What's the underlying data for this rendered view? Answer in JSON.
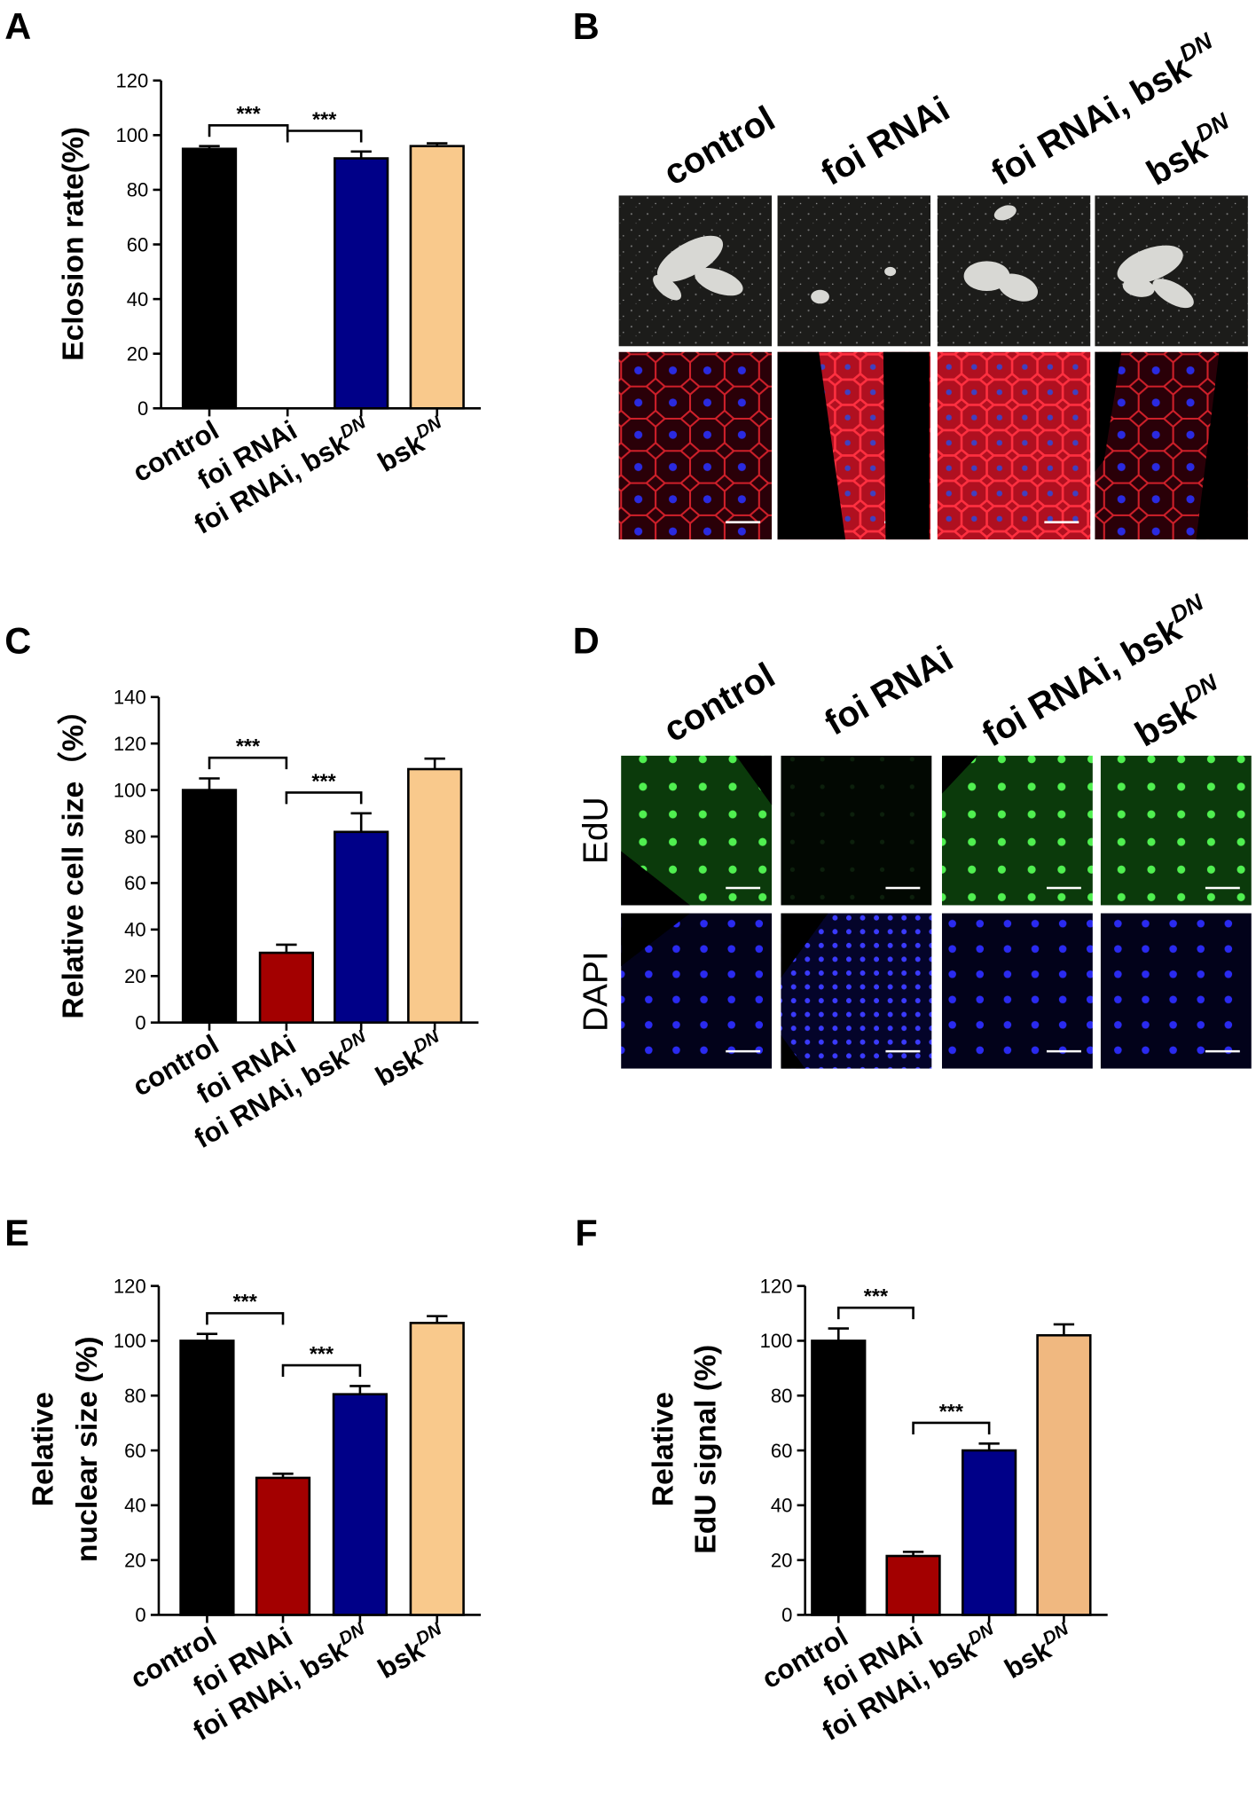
{
  "chart_data": [
    {
      "type": "bar",
      "panel_label": "A",
      "y_label": "Eclosion rate(%)",
      "categories": [
        "control",
        "foi RNAi",
        "foi RNAi, bsk",
        "bsk"
      ],
      "category_superscripts": [
        null,
        null,
        "DN",
        "DN"
      ],
      "values": [
        95,
        0,
        91.5,
        96
      ],
      "errors": [
        1,
        0,
        2.5,
        1
      ],
      "colors": [
        "#000000",
        "#ffffff",
        "#000088",
        "#f9c98c"
      ],
      "ylim": [
        0,
        120
      ],
      "yticks": [
        0,
        20,
        40,
        60,
        80,
        100,
        120
      ],
      "annotations": [
        {
          "text": "***",
          "categories": [
            0,
            1
          ]
        },
        {
          "text": "***",
          "categories": [
            1,
            2
          ]
        }
      ]
    },
    {
      "type": "bar",
      "panel_label": "C",
      "y_label": "Relative cell size（%）",
      "categories": [
        "control",
        "foi RNAi",
        "foi RNAi,  bsk",
        "bsk"
      ],
      "category_superscripts": [
        null,
        null,
        "DN",
        "DN"
      ],
      "values": [
        100,
        30,
        82,
        109
      ],
      "errors": [
        5,
        3.5,
        8,
        4.5
      ],
      "colors": [
        "#000000",
        "#a30000",
        "#000088",
        "#f9c98c"
      ],
      "ylim": [
        0,
        140
      ],
      "yticks": [
        0,
        20,
        40,
        60,
        80,
        100,
        120,
        140
      ],
      "annotations": [
        {
          "text": "***",
          "categories": [
            0,
            1
          ]
        },
        {
          "text": "***",
          "categories": [
            1,
            2
          ]
        }
      ]
    },
    {
      "type": "bar",
      "panel_label": "E",
      "y_label": [
        "Relative",
        "nuclear size (%)"
      ],
      "categories": [
        "control",
        "foi RNAi",
        "foi RNAi, bsk",
        "bsk"
      ],
      "category_superscripts": [
        null,
        null,
        "DN",
        "DN"
      ],
      "values": [
        100,
        50,
        80.5,
        106.5
      ],
      "errors": [
        2.5,
        1.5,
        3,
        2.5
      ],
      "colors": [
        "#000000",
        "#a30000",
        "#000088",
        "#f9c98c"
      ],
      "ylim": [
        0,
        120
      ],
      "yticks": [
        0,
        20,
        40,
        60,
        80,
        100,
        120
      ],
      "annotations": [
        {
          "text": "***",
          "categories": [
            0,
            1
          ]
        },
        {
          "text": "***",
          "categories": [
            1,
            2
          ]
        }
      ]
    },
    {
      "type": "bar",
      "panel_label": "F",
      "y_label": [
        "Relative",
        "EdU signal (%)"
      ],
      "categories": [
        "control",
        "foi RNAi",
        "foi RNAi, bsk",
        "bsk"
      ],
      "category_superscripts": [
        null,
        null,
        "DN",
        "DN"
      ],
      "values": [
        100,
        21.5,
        60,
        102
      ],
      "errors": [
        4.5,
        1.5,
        2.5,
        4
      ],
      "colors": [
        "#000000",
        "#a30000",
        "#000088",
        "#f0b880"
      ],
      "ylim": [
        0,
        120
      ],
      "yticks": [
        0,
        20,
        40,
        60,
        80,
        100,
        120
      ],
      "annotations": [
        {
          "text": "***",
          "categories": [
            0,
            1
          ]
        },
        {
          "text": "***",
          "categories": [
            1,
            2
          ]
        }
      ]
    }
  ],
  "panel_B": {
    "label": "B",
    "columns": [
      "control",
      "foi RNAi",
      "foi RNAi, bsk",
      "bsk"
    ],
    "column_superscripts": [
      null,
      null,
      "DN",
      "DN"
    ]
  },
  "panel_D": {
    "label": "D",
    "columns": [
      "control",
      "foi RNAi",
      "foi RNAi, bsk",
      "bsk"
    ],
    "column_superscripts": [
      null,
      null,
      "DN",
      "DN"
    ],
    "rows": [
      "EdU",
      "DAPI"
    ]
  }
}
